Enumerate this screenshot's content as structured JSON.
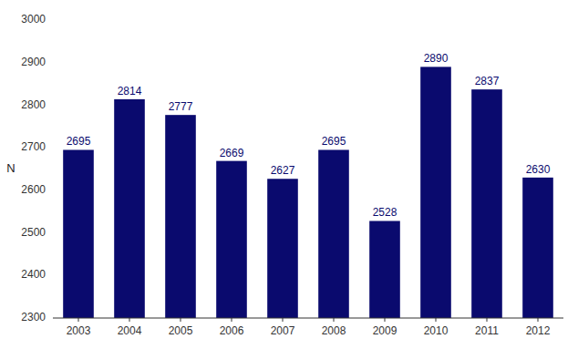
{
  "chart_data": {
    "type": "bar",
    "categories": [
      "2003",
      "2004",
      "2005",
      "2006",
      "2007",
      "2008",
      "2009",
      "2010",
      "2011",
      "2012"
    ],
    "values": [
      2695,
      2814,
      2777,
      2669,
      2627,
      2695,
      2528,
      2890,
      2837,
      2630
    ],
    "color": "#0A0A6E",
    "ylabel": "N",
    "ylim": [
      2300,
      3000
    ],
    "yticks": [
      2300,
      2400,
      2500,
      2600,
      2700,
      2800,
      2900,
      3000
    ],
    "grid": false,
    "data_labels": true
  }
}
